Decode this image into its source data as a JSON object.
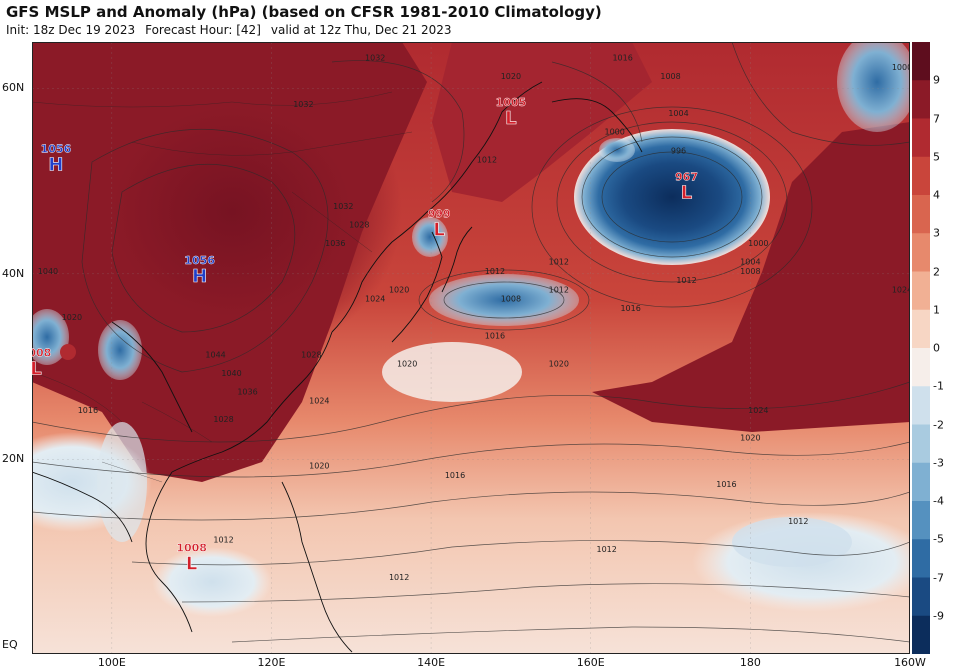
{
  "header": {
    "title": "GFS MSLP and Anomaly (hPa) (based on CFSR 1981-2010 Climatology)",
    "init": "Init: 18z Dec 19 2023",
    "forecast_hour": "Forecast Hour: [42]",
    "valid": "valid at 12z Thu, Dec 21 2023"
  },
  "axes": {
    "lat_labels": [
      {
        "text": "60N",
        "lat": 60
      },
      {
        "text": "40N",
        "lat": 40
      },
      {
        "text": "20N",
        "lat": 20
      },
      {
        "text": "EQ",
        "lat": 0
      }
    ],
    "lon_labels": [
      {
        "text": "100E",
        "lon": 100
      },
      {
        "text": "120E",
        "lon": 120
      },
      {
        "text": "140E",
        "lon": 140
      },
      {
        "text": "160E",
        "lon": 160
      },
      {
        "text": "180",
        "lon": 180
      },
      {
        "text": "160W",
        "lon": 200
      }
    ]
  },
  "colorbar": {
    "ticks": [
      "9",
      "7",
      "5",
      "4",
      "3",
      "2",
      "1",
      "0",
      "-1",
      "-2",
      "-3",
      "-4",
      "-5",
      "-7",
      "-9"
    ],
    "colors": [
      "#5e0d1e",
      "#8b1a27",
      "#b02a30",
      "#c9453b",
      "#d9654f",
      "#e7896c",
      "#f1b094",
      "#f7d6c4",
      "#f6eeea",
      "#cfe0ec",
      "#a9cbe0",
      "#7fb0d2",
      "#5591bf",
      "#2f6ca4",
      "#1a4a82",
      "#0c2d5c"
    ]
  },
  "pressure_centers": [
    {
      "type": "H",
      "value": "1056",
      "lon": 93,
      "lat": 52,
      "color": "#1f3fc8"
    },
    {
      "type": "H",
      "value": "1056",
      "lon": 111,
      "lat": 40,
      "color": "#1f3fc8"
    },
    {
      "type": "L",
      "value": "1008",
      "lon": 90.5,
      "lat": 30,
      "color": "#d31f2a"
    },
    {
      "type": "L",
      "value": "1005",
      "lon": 150,
      "lat": 57,
      "color": "#d31f2a"
    },
    {
      "type": "L",
      "value": "999",
      "lon": 141,
      "lat": 45,
      "color": "#d31f2a"
    },
    {
      "type": "L",
      "value": "967",
      "lon": 172,
      "lat": 49,
      "color": "#d31f2a"
    },
    {
      "type": "L",
      "value": "1008",
      "lon": 110,
      "lat": 9,
      "color": "#d31f2a"
    }
  ],
  "isobar_labels": [
    {
      "text": "1032",
      "lon": 133,
      "lat": 63
    },
    {
      "text": "1032",
      "lon": 124,
      "lat": 58
    },
    {
      "text": "1020",
      "lon": 150,
      "lat": 61
    },
    {
      "text": "1016",
      "lon": 164,
      "lat": 63
    },
    {
      "text": "1008",
      "lon": 170,
      "lat": 61
    },
    {
      "text": "1004",
      "lon": 171,
      "lat": 57
    },
    {
      "text": "1000",
      "lon": 163,
      "lat": 55
    },
    {
      "text": "996",
      "lon": 171,
      "lat": 53
    },
    {
      "text": "1000",
      "lon": 199,
      "lat": 62
    },
    {
      "text": "1000",
      "lon": 181,
      "lat": 43
    },
    {
      "text": "1004",
      "lon": 180,
      "lat": 41
    },
    {
      "text": "1008",
      "lon": 180,
      "lat": 40
    },
    {
      "text": "1012",
      "lon": 172,
      "lat": 39
    },
    {
      "text": "1016",
      "lon": 165,
      "lat": 36
    },
    {
      "text": "1012",
      "lon": 148,
      "lat": 40
    },
    {
      "text": "1012",
      "lon": 156,
      "lat": 41
    },
    {
      "text": "1012",
      "lon": 156,
      "lat": 38
    },
    {
      "text": "1008",
      "lon": 150,
      "lat": 37
    },
    {
      "text": "1016",
      "lon": 148,
      "lat": 33
    },
    {
      "text": "1020",
      "lon": 136,
      "lat": 38
    },
    {
      "text": "1024",
      "lon": 133,
      "lat": 37
    },
    {
      "text": "1028",
      "lon": 131,
      "lat": 45
    },
    {
      "text": "1032",
      "lon": 129,
      "lat": 47
    },
    {
      "text": "1036",
      "lon": 128,
      "lat": 43
    },
    {
      "text": "1012",
      "lon": 147,
      "lat": 52
    },
    {
      "text": "1040",
      "lon": 92,
      "lat": 40
    },
    {
      "text": "1044",
      "lon": 113,
      "lat": 31
    },
    {
      "text": "1040",
      "lon": 115,
      "lat": 29
    },
    {
      "text": "1036",
      "lon": 117,
      "lat": 27
    },
    {
      "text": "1028",
      "lon": 125,
      "lat": 31
    },
    {
      "text": "1024",
      "lon": 126,
      "lat": 26
    },
    {
      "text": "1028",
      "lon": 114,
      "lat": 24
    },
    {
      "text": "1020",
      "lon": 95,
      "lat": 35
    },
    {
      "text": "1016",
      "lon": 97,
      "lat": 25
    },
    {
      "text": "1020",
      "lon": 137,
      "lat": 30
    },
    {
      "text": "1020",
      "lon": 156,
      "lat": 30
    },
    {
      "text": "1024",
      "lon": 181,
      "lat": 25
    },
    {
      "text": "1024",
      "lon": 199,
      "lat": 38
    },
    {
      "text": "1020",
      "lon": 180,
      "lat": 22
    },
    {
      "text": "1016",
      "lon": 143,
      "lat": 18
    },
    {
      "text": "1016",
      "lon": 177,
      "lat": 17
    },
    {
      "text": "1020",
      "lon": 126,
      "lat": 19
    },
    {
      "text": "1012",
      "lon": 186,
      "lat": 13
    },
    {
      "text": "1012",
      "lon": 162,
      "lat": 10
    },
    {
      "text": "1012",
      "lon": 114,
      "lat": 11
    },
    {
      "text": "1012",
      "lon": 136,
      "lat": 7
    }
  ]
}
